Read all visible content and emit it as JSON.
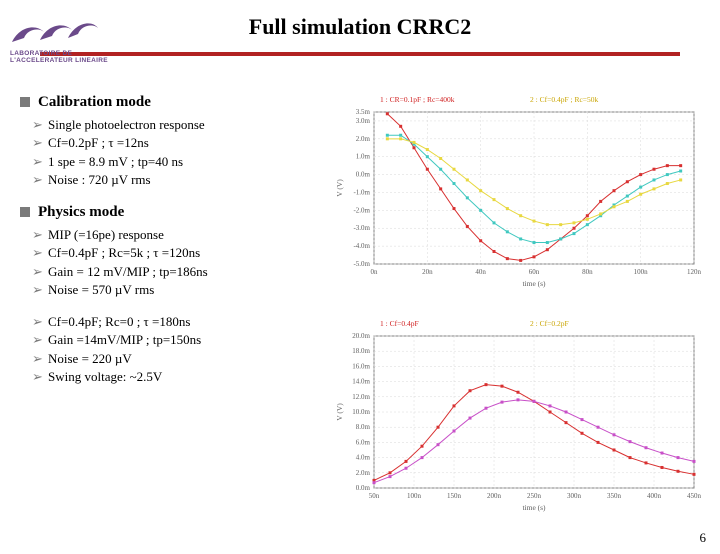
{
  "title": "Full simulation CRRC2",
  "logo_sub": "LABORATOIRE DE L'ACCELERATEUR LINEAIRE",
  "sections": [
    {
      "heading": "Calibration mode",
      "items": [
        "Single photoelectron response",
        "Cf=0.2pF ; τ =12ns",
        "1 spe = 8.9 mV ; tp=40 ns",
        "Noise : 720 µV rms"
      ]
    },
    {
      "heading": "Physics mode",
      "items": [
        "MIP (=16pe) response",
        "Cf=0.4pF ; Rc=5k ; τ =120ns",
        "Gain = 12 mV/MIP ;  tp=186ns",
        "Noise = 570 µV rms"
      ],
      "items2": [
        "Cf=0.4pF; Rc=0 ; τ =180ns",
        "Gain =14mV/MIP ; tp=150ns",
        "Noise = 220 µV",
        "Swing voltage: ~2.5V"
      ]
    }
  ],
  "page_number": "6",
  "chart_top": {
    "type": "line",
    "title_lines": [
      "1 : CR=0.1pF ; Rc=400k",
      "2 : Cf=0.4pF ; Rc=50k"
    ],
    "title_colors": [
      "#d02020",
      "#c9a400"
    ],
    "xlabel": "time (s)",
    "ylabel": "V (V)",
    "xlim": [
      0,
      1.2e-07
    ],
    "ylim": [
      -0.005,
      0.0035
    ],
    "xticks_ns": [
      0,
      20,
      40,
      60,
      80,
      100,
      120
    ],
    "yticks_mv": [
      -5.0,
      -4.0,
      -3.0,
      -2.0,
      -1.0,
      0.0,
      1.0,
      2.0,
      3.0,
      3.5
    ],
    "background_color": "#ffffff",
    "grid_color": "#d8d8d8",
    "axis_color": "#808080",
    "series": [
      {
        "name": "red",
        "color": "#d83030",
        "marker": "square",
        "marker_size": 3,
        "line_width": 1,
        "x_ns": [
          5,
          10,
          15,
          20,
          25,
          30,
          35,
          40,
          45,
          50,
          55,
          60,
          65,
          70,
          75,
          80,
          85,
          90,
          95,
          100,
          105,
          110,
          115
        ],
        "y_mv": [
          3.4,
          2.7,
          1.5,
          0.3,
          -0.8,
          -1.9,
          -2.9,
          -3.7,
          -4.3,
          -4.7,
          -4.8,
          -4.6,
          -4.2,
          -3.6,
          -3.0,
          -2.3,
          -1.5,
          -0.9,
          -0.4,
          0.0,
          0.3,
          0.5,
          0.5
        ]
      },
      {
        "name": "cyan",
        "color": "#40c8c0",
        "marker": "square",
        "marker_size": 3,
        "line_width": 1,
        "x_ns": [
          5,
          10,
          15,
          20,
          25,
          30,
          35,
          40,
          45,
          50,
          55,
          60,
          65,
          70,
          75,
          80,
          85,
          90,
          95,
          100,
          105,
          110,
          115
        ],
        "y_mv": [
          2.2,
          2.2,
          1.7,
          1.0,
          0.3,
          -0.5,
          -1.3,
          -2.0,
          -2.7,
          -3.2,
          -3.6,
          -3.8,
          -3.8,
          -3.6,
          -3.3,
          -2.8,
          -2.3,
          -1.7,
          -1.2,
          -0.7,
          -0.3,
          0.0,
          0.2
        ]
      },
      {
        "name": "yellow",
        "color": "#e8d840",
        "marker": "square",
        "marker_size": 3,
        "line_width": 1,
        "x_ns": [
          5,
          10,
          15,
          20,
          25,
          30,
          35,
          40,
          45,
          50,
          55,
          60,
          65,
          70,
          75,
          80,
          85,
          90,
          95,
          100,
          105,
          110,
          115
        ],
        "y_mv": [
          2.0,
          2.0,
          1.8,
          1.4,
          0.9,
          0.3,
          -0.3,
          -0.9,
          -1.4,
          -1.9,
          -2.3,
          -2.6,
          -2.8,
          -2.8,
          -2.7,
          -2.5,
          -2.2,
          -1.8,
          -1.5,
          -1.1,
          -0.8,
          -0.5,
          -0.3
        ]
      }
    ]
  },
  "chart_bottom": {
    "type": "line",
    "title_lines": [
      "1 : Cf=0.4pF",
      "2 : Cf=0.2pF"
    ],
    "title_colors": [
      "#d02020",
      "#c9a400"
    ],
    "xlabel": "time (s)",
    "ylabel": "V (V)",
    "xlim": [
      5e-08,
      4.5e-07
    ],
    "ylim": [
      0,
      0.02
    ],
    "xticks_ns": [
      50,
      100,
      150,
      200,
      250,
      300,
      350,
      400,
      450
    ],
    "yticks_mv": [
      0,
      2,
      4,
      6,
      8,
      10,
      12,
      14,
      16,
      18,
      20
    ],
    "background_color": "#ffffff",
    "grid_color": "#d8d8d8",
    "axis_color": "#808080",
    "series": [
      {
        "name": "red",
        "color": "#d83030",
        "marker": "square",
        "marker_size": 3,
        "line_width": 1,
        "x_ns": [
          50,
          70,
          90,
          110,
          130,
          150,
          170,
          190,
          210,
          230,
          250,
          270,
          290,
          310,
          330,
          350,
          370,
          390,
          410,
          430,
          450
        ],
        "y_mv": [
          1.0,
          2.0,
          3.5,
          5.5,
          8.0,
          10.8,
          12.8,
          13.6,
          13.4,
          12.6,
          11.4,
          10.0,
          8.6,
          7.2,
          6.0,
          5.0,
          4.0,
          3.3,
          2.7,
          2.2,
          1.8
        ]
      },
      {
        "name": "magenta",
        "color": "#c850c8",
        "marker": "square",
        "marker_size": 3,
        "line_width": 1,
        "x_ns": [
          50,
          70,
          90,
          110,
          130,
          150,
          170,
          190,
          210,
          230,
          250,
          270,
          290,
          310,
          330,
          350,
          370,
          390,
          410,
          430,
          450
        ],
        "y_mv": [
          0.7,
          1.5,
          2.6,
          4.0,
          5.7,
          7.5,
          9.2,
          10.5,
          11.3,
          11.6,
          11.4,
          10.8,
          10.0,
          9.0,
          8.0,
          7.0,
          6.1,
          5.3,
          4.6,
          4.0,
          3.5
        ]
      }
    ]
  }
}
